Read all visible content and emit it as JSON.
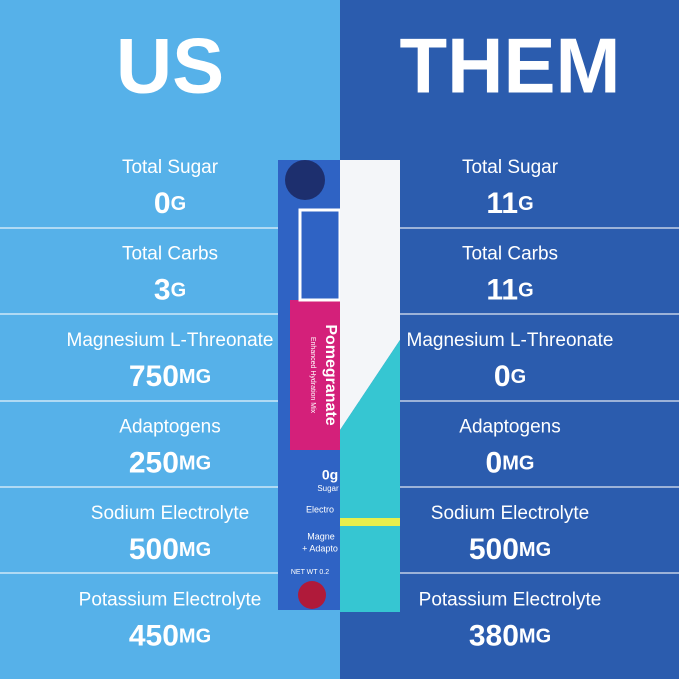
{
  "columns": [
    {
      "title": "US",
      "rows": [
        {
          "label": "Total Sugar",
          "value": "0",
          "unit": "G"
        },
        {
          "label": "Total Carbs",
          "value": "3",
          "unit": "G"
        },
        {
          "label": "Magnesium L-Threonate",
          "value": "750",
          "unit": "MG"
        },
        {
          "label": "Adaptogens",
          "value": "250",
          "unit": "MG"
        },
        {
          "label": "Sodium Electrolyte",
          "value": "500",
          "unit": "MG"
        },
        {
          "label": "Potassium Electrolyte",
          "value": "450",
          "unit": "MG"
        }
      ]
    },
    {
      "title": "THEM",
      "rows": [
        {
          "label": "Total Sugar",
          "value": "11",
          "unit": "G"
        },
        {
          "label": "Total Carbs",
          "value": "11",
          "unit": "G"
        },
        {
          "label": "Magnesium L-Threonate",
          "value": "0",
          "unit": "G"
        },
        {
          "label": "Adaptogens",
          "value": "0",
          "unit": "MG"
        },
        {
          "label": "Sodium Electrolyte",
          "value": "500",
          "unit": "MG"
        },
        {
          "label": "Potassium Electrolyte",
          "value": "380",
          "unit": "MG"
        }
      ]
    }
  ],
  "packet": {
    "flavor": "Pomegranate",
    "subtitle": "Enhanced Hydration Mix",
    "sugar": "0g",
    "sugar_label": "Sugar",
    "electro": "Electro",
    "magne": "Magne",
    "adapto": "+ Adapto",
    "net": "NET WT 0.2"
  }
}
